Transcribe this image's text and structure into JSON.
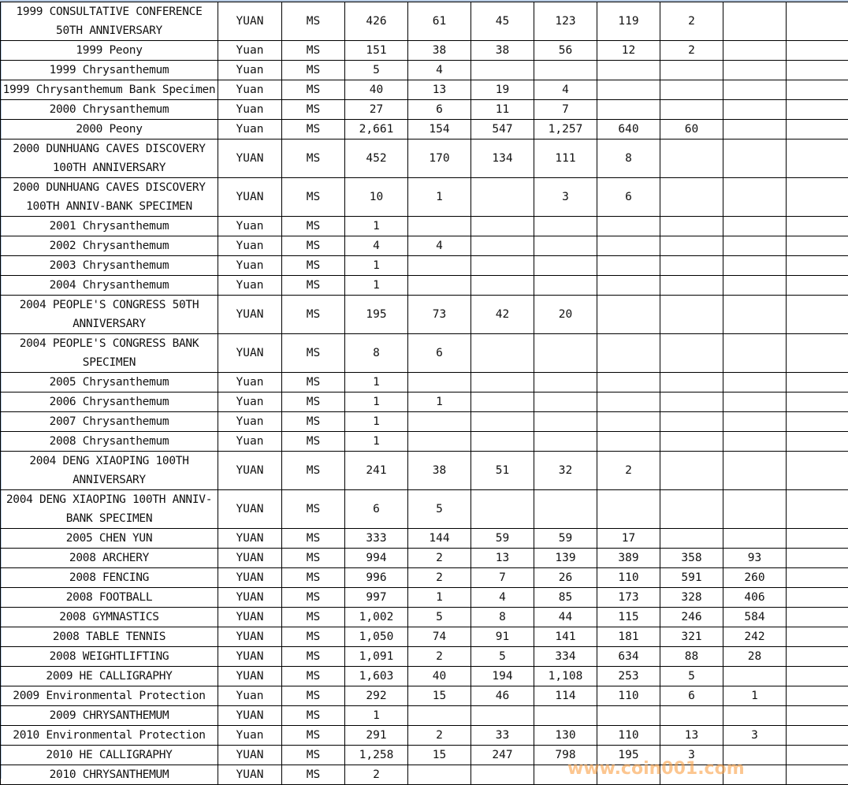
{
  "rows": [
    {
      "name": "1999 CONSULTATIVE CONFERENCE 50TH ANNIVERSARY",
      "denom": "YUAN",
      "grade": "MS",
      "values": [
        "426",
        "61",
        "45",
        "123",
        "119",
        "2",
        "",
        ""
      ]
    },
    {
      "name": "1999 Peony",
      "denom": "Yuan",
      "grade": "MS",
      "values": [
        "151",
        "38",
        "38",
        "56",
        "12",
        "2",
        "",
        ""
      ]
    },
    {
      "name": "1999 Chrysanthemum",
      "denom": "Yuan",
      "grade": "MS",
      "values": [
        "5",
        "4",
        "",
        "",
        "",
        "",
        "",
        ""
      ]
    },
    {
      "name": "1999 Chrysanthemum Bank Specimen",
      "denom": "Yuan",
      "grade": "MS",
      "values": [
        "40",
        "13",
        "19",
        "4",
        "",
        "",
        "",
        ""
      ]
    },
    {
      "name": "2000 Chrysanthemum",
      "denom": "Yuan",
      "grade": "MS",
      "values": [
        "27",
        "6",
        "11",
        "7",
        "",
        "",
        "",
        ""
      ]
    },
    {
      "name": "2000 Peony",
      "denom": "Yuan",
      "grade": "MS",
      "values": [
        "2,661",
        "154",
        "547",
        "1,257",
        "640",
        "60",
        "",
        ""
      ]
    },
    {
      "name": "2000 DUNHUANG CAVES DISCOVERY 100TH ANNIVERSARY",
      "denom": "YUAN",
      "grade": "MS",
      "values": [
        "452",
        "170",
        "134",
        "111",
        "8",
        "",
        "",
        ""
      ]
    },
    {
      "name": "2000 DUNHUANG CAVES DISCOVERY 100TH ANNIV-BANK SPECIMEN",
      "denom": "YUAN",
      "grade": "MS",
      "values": [
        "10",
        "1",
        "",
        "3",
        "6",
        "",
        "",
        ""
      ]
    },
    {
      "name": "2001 Chrysanthemum",
      "denom": "Yuan",
      "grade": "MS",
      "values": [
        "1",
        "",
        "",
        "",
        "",
        "",
        "",
        ""
      ]
    },
    {
      "name": "2002 Chrysanthemum",
      "denom": "Yuan",
      "grade": "MS",
      "values": [
        "4",
        "4",
        "",
        "",
        "",
        "",
        "",
        ""
      ]
    },
    {
      "name": "2003 Chrysanthemum",
      "denom": "Yuan",
      "grade": "MS",
      "values": [
        "1",
        "",
        "",
        "",
        "",
        "",
        "",
        ""
      ]
    },
    {
      "name": "2004 Chrysanthemum",
      "denom": "Yuan",
      "grade": "MS",
      "values": [
        "1",
        "",
        "",
        "",
        "",
        "",
        "",
        ""
      ]
    },
    {
      "name": "2004 PEOPLE'S CONGRESS 50TH ANNIVERSARY",
      "denom": "YUAN",
      "grade": "MS",
      "values": [
        "195",
        "73",
        "42",
        "20",
        "",
        "",
        "",
        ""
      ]
    },
    {
      "name": "2004 PEOPLE'S CONGRESS BANK SPECIMEN",
      "denom": "YUAN",
      "grade": "MS",
      "values": [
        "8",
        "6",
        "",
        "",
        "",
        "",
        "",
        ""
      ]
    },
    {
      "name": "2005 Chrysanthemum",
      "denom": "Yuan",
      "grade": "MS",
      "values": [
        "1",
        "",
        "",
        "",
        "",
        "",
        "",
        ""
      ]
    },
    {
      "name": "2006 Chrysanthemum",
      "denom": "Yuan",
      "grade": "MS",
      "values": [
        "1",
        "1",
        "",
        "",
        "",
        "",
        "",
        ""
      ]
    },
    {
      "name": "2007 Chrysanthemum",
      "denom": "Yuan",
      "grade": "MS",
      "values": [
        "1",
        "",
        "",
        "",
        "",
        "",
        "",
        ""
      ]
    },
    {
      "name": "2008 Chrysanthemum",
      "denom": "Yuan",
      "grade": "MS",
      "values": [
        "1",
        "",
        "",
        "",
        "",
        "",
        "",
        ""
      ]
    },
    {
      "name": "2004 DENG XIAOPING 100TH ANNIVERSARY",
      "denom": "YUAN",
      "grade": "MS",
      "values": [
        "241",
        "38",
        "51",
        "32",
        "2",
        "",
        "",
        ""
      ]
    },
    {
      "name": "2004 DENG XIAOPING 100TH ANNIV-BANK SPECIMEN",
      "denom": "YUAN",
      "grade": "MS",
      "values": [
        "6",
        "5",
        "",
        "",
        "",
        "",
        "",
        ""
      ]
    },
    {
      "name": "2005 CHEN YUN",
      "denom": "YUAN",
      "grade": "MS",
      "values": [
        "333",
        "144",
        "59",
        "59",
        "17",
        "",
        "",
        ""
      ]
    },
    {
      "name": "2008 ARCHERY",
      "denom": "YUAN",
      "grade": "MS",
      "values": [
        "994",
        "2",
        "13",
        "139",
        "389",
        "358",
        "93",
        ""
      ]
    },
    {
      "name": "2008 FENCING",
      "denom": "YUAN",
      "grade": "MS",
      "values": [
        "996",
        "2",
        "7",
        "26",
        "110",
        "591",
        "260",
        ""
      ]
    },
    {
      "name": "2008 FOOTBALL",
      "denom": "YUAN",
      "grade": "MS",
      "values": [
        "997",
        "1",
        "4",
        "85",
        "173",
        "328",
        "406",
        ""
      ]
    },
    {
      "name": "2008 GYMNASTICS",
      "denom": "YUAN",
      "grade": "MS",
      "values": [
        "1,002",
        "5",
        "8",
        "44",
        "115",
        "246",
        "584",
        ""
      ]
    },
    {
      "name": "2008 TABLE TENNIS",
      "denom": "YUAN",
      "grade": "MS",
      "values": [
        "1,050",
        "74",
        "91",
        "141",
        "181",
        "321",
        "242",
        ""
      ]
    },
    {
      "name": "2008 WEIGHTLIFTING",
      "denom": "YUAN",
      "grade": "MS",
      "values": [
        "1,091",
        "2",
        "5",
        "334",
        "634",
        "88",
        "28",
        ""
      ]
    },
    {
      "name": "2009 HE CALLIGRAPHY",
      "denom": "YUAN",
      "grade": "MS",
      "values": [
        "1,603",
        "40",
        "194",
        "1,108",
        "253",
        "5",
        "",
        ""
      ]
    },
    {
      "name": "2009 Environmental Protection",
      "denom": "Yuan",
      "grade": "MS",
      "values": [
        "292",
        "15",
        "46",
        "114",
        "110",
        "6",
        "1",
        ""
      ]
    },
    {
      "name": "2009 CHRYSANTHEMUM",
      "denom": "YUAN",
      "grade": "MS",
      "values": [
        "1",
        "",
        "",
        "",
        "",
        "",
        "",
        ""
      ]
    },
    {
      "name": "2010 Environmental Protection",
      "denom": "Yuan",
      "grade": "MS",
      "values": [
        "291",
        "2",
        "33",
        "130",
        "110",
        "13",
        "3",
        ""
      ]
    },
    {
      "name": "2010 HE CALLIGRAPHY",
      "denom": "YUAN",
      "grade": "MS",
      "values": [
        "1,258",
        "15",
        "247",
        "798",
        "195",
        "3",
        "",
        ""
      ]
    },
    {
      "name": "2010 CHRYSANTHEMUM",
      "denom": "YUAN",
      "grade": "MS",
      "values": [
        "2",
        "",
        "",
        "",
        "",
        "",
        "",
        ""
      ]
    }
  ],
  "watermark": "www.coin001.com",
  "colors": {
    "watermark": "#f9a046",
    "frame": "#b8cce4"
  }
}
